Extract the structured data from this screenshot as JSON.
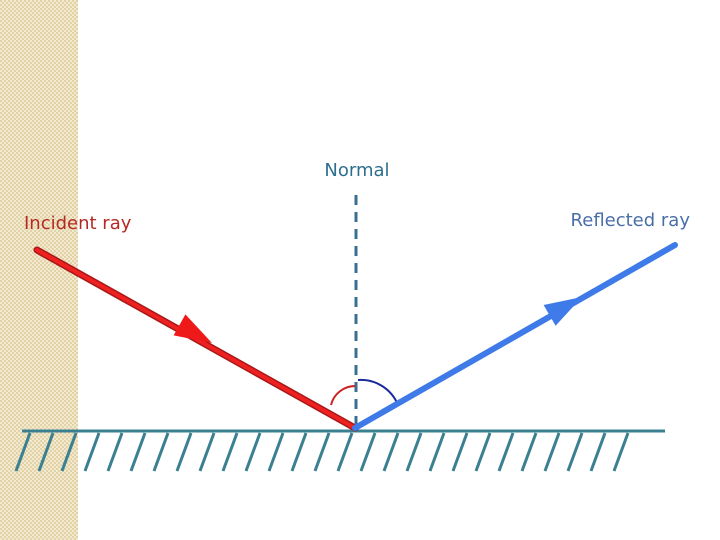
{
  "labels": {
    "normal": "Normal",
    "incident": "Incident ray",
    "reflected": "Reflected ray"
  }
}
